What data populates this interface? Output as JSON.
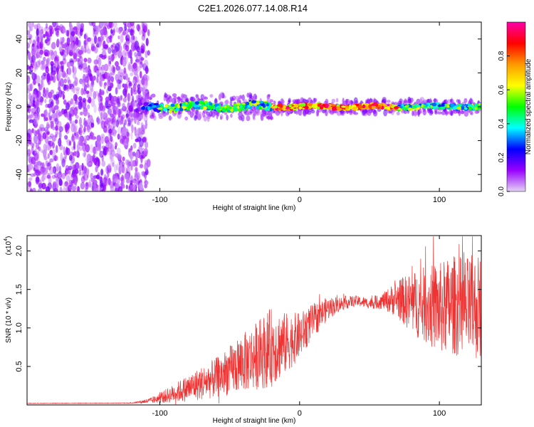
{
  "title": "C2E1.2026.077.14.08.R14",
  "chart_data": [
    {
      "type": "heatmap",
      "xlabel": "Height of straight line (km)",
      "ylabel": "Frequency (Hz)",
      "xlim": [
        -195,
        130
      ],
      "ylim": [
        -50,
        50
      ],
      "xticks": [
        -100,
        0,
        100
      ],
      "yticks": [
        -40,
        -20,
        0,
        20,
        40
      ],
      "xtick_labels": [
        "-100",
        "0",
        "100"
      ],
      "ytick_labels": [
        "-40",
        "-20",
        "0",
        "20",
        "40"
      ],
      "colorbar": {
        "label": "Normalized spectral amplitude",
        "range": [
          0,
          1
        ],
        "ticks": [
          0.0,
          0.2,
          0.4,
          0.6,
          0.8
        ],
        "tick_labels": [
          "0.0",
          "0.2",
          "0.4",
          "0.6",
          "0.8"
        ],
        "colormap": [
          "#e4d4f4",
          "#9900ff",
          "#0000ff",
          "#00ffff",
          "#00ff00",
          "#ffff00",
          "#ff9900",
          "#ff0000",
          "#ff00aa"
        ]
      },
      "description_of_field": {
        "noise_region_x": [
          -195,
          -108
        ],
        "signal_band_x": [
          -120,
          130
        ],
        "signal_center_frequency": 0,
        "signal_band_halfwidth_hz": 3
      }
    },
    {
      "type": "line",
      "xlabel": "Height of straight line (km)",
      "ylabel": "SNR (10 * v/v)",
      "scale_label": "(x10",
      "scale_exponent": "4",
      "xlim": [
        -195,
        130
      ],
      "ylim": [
        0,
        22000
      ],
      "xticks": [
        -100,
        0,
        100
      ],
      "xtick_labels": [
        "-100",
        "0",
        "100"
      ],
      "yticks": [
        5000,
        10000,
        15000,
        20000
      ],
      "ytick_labels": [
        "0.5",
        "1.0",
        "1.5",
        "2.0"
      ],
      "color": "#ee3333",
      "envelope": {
        "x": [
          -195,
          -120,
          -105,
          -90,
          -75,
          -60,
          -45,
          -30,
          -20,
          -10,
          0,
          10,
          20,
          30,
          40,
          50,
          60,
          70,
          80,
          90,
          100,
          110,
          120,
          130
        ],
        "y": [
          200,
          250,
          600,
          1500,
          2500,
          3500,
          5000,
          6500,
          7500,
          8000,
          9000,
          11000,
          12500,
          13200,
          13500,
          13200,
          13500,
          13800,
          13200,
          13000,
          12500,
          13000,
          12500,
          12800
        ],
        "noise_amplitude": [
          30,
          40,
          400,
          1200,
          2000,
          2600,
          3500,
          4500,
          5200,
          4000,
          3000,
          2200,
          1500,
          900,
          700,
          700,
          1100,
          2500,
          4000,
          5000,
          6000,
          6500,
          6800,
          7000
        ]
      }
    }
  ]
}
